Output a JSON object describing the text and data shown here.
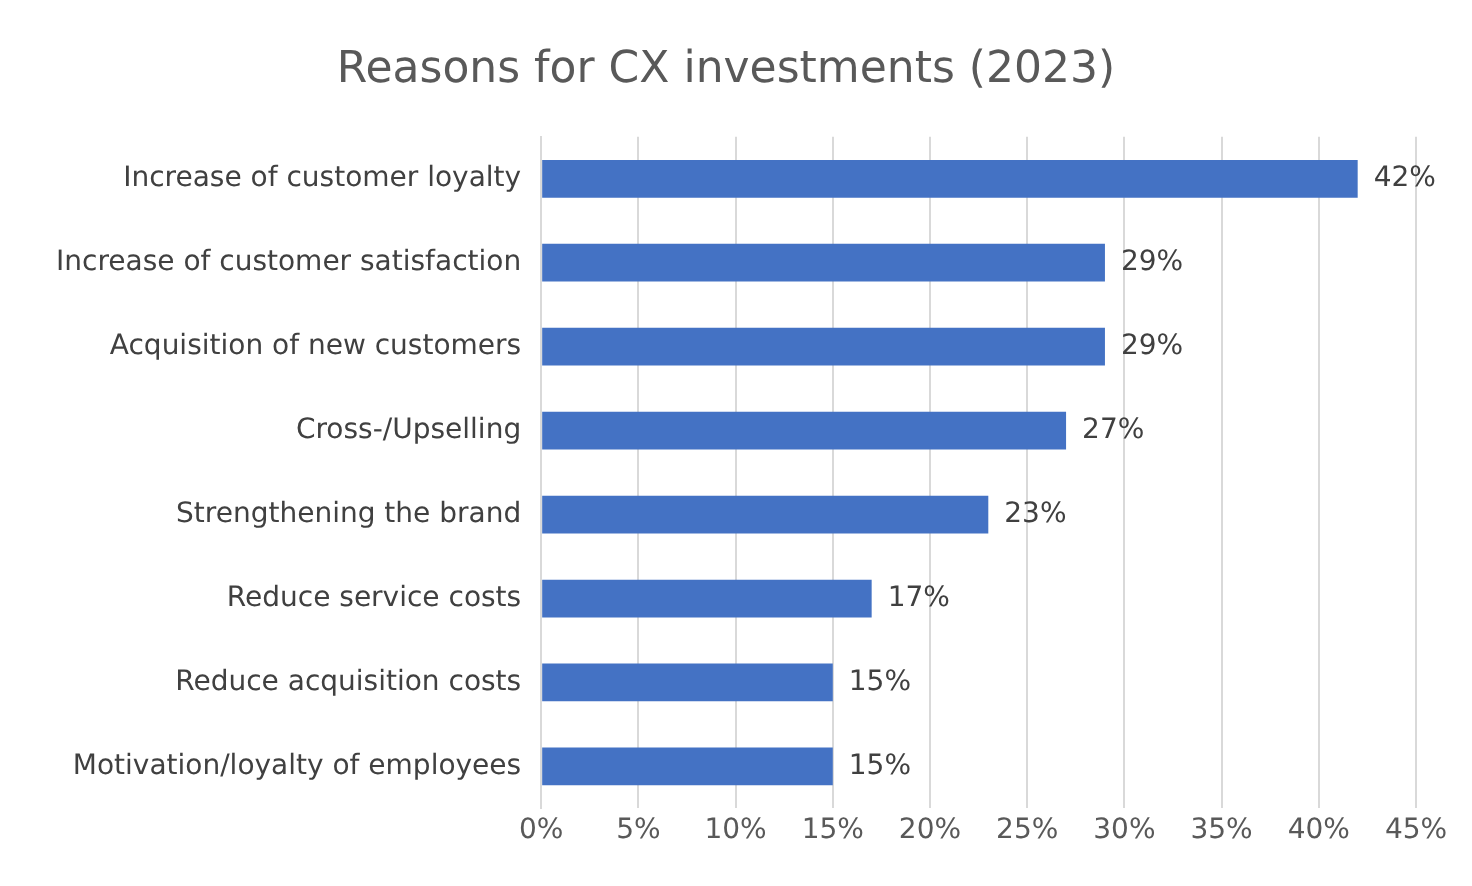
{
  "chart_data": {
    "type": "bar",
    "orientation": "horizontal",
    "title": "Reasons for CX investments (2023)",
    "categories": [
      "Increase of customer loyalty",
      "Increase of customer satisfaction",
      "Acquisition of new customers",
      "Cross-/Upselling",
      "Strengthening the brand",
      "Reduce service costs",
      "Reduce acquisition costs",
      "Motivation/loyalty of employees"
    ],
    "values": [
      42,
      29,
      29,
      27,
      23,
      17,
      15,
      15
    ],
    "value_labels": [
      "42%",
      "29%",
      "29%",
      "27%",
      "23%",
      "17%",
      "15%",
      "15%"
    ],
    "color": "#4472c4",
    "xlim": [
      0,
      45
    ],
    "xticks": [
      {
        "value": 0,
        "label": "0%"
      },
      {
        "value": 5,
        "label": "5%"
      },
      {
        "value": 10,
        "label": "10%"
      },
      {
        "value": 15,
        "label": "15%"
      },
      {
        "value": 20,
        "label": "20%"
      },
      {
        "value": 25,
        "label": "25%"
      },
      {
        "value": 30,
        "label": "30%"
      },
      {
        "value": 35,
        "label": "35%"
      },
      {
        "value": 40,
        "label": "40%"
      },
      {
        "value": 45,
        "label": "45%"
      }
    ],
    "grid": "x"
  }
}
